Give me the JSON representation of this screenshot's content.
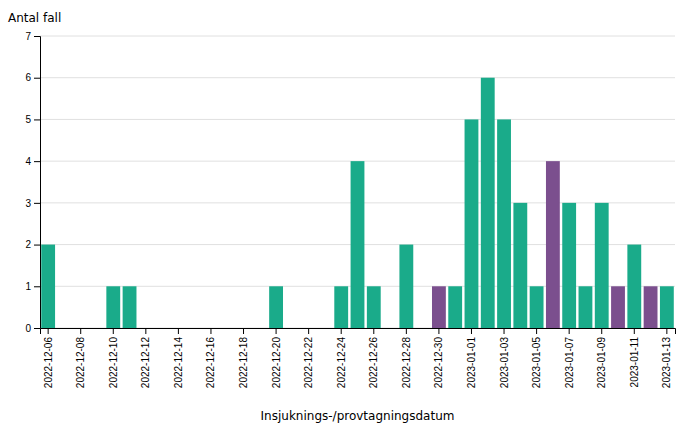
{
  "chart_data": {
    "type": "bar",
    "ylabel": "Antal fall",
    "xlabel": "Insjuknings-/provtagningsdatum",
    "categories": [
      "2022-12-06",
      null,
      "2022-12-08",
      null,
      "2022-12-10",
      null,
      "2022-12-12",
      null,
      "2022-12-14",
      null,
      "2022-12-16",
      null,
      "2022-12-18",
      null,
      "2022-12-20",
      null,
      "2022-12-22",
      null,
      "2022-12-24",
      null,
      "2022-12-26",
      null,
      "2022-12-28",
      null,
      "2022-12-30",
      null,
      "2023-01-01",
      null,
      "2023-01-03",
      null,
      "2023-01-05",
      null,
      "2023-01-07",
      null,
      "2023-01-09",
      null,
      "2023-01-11",
      null,
      "2023-01-13"
    ],
    "values": [
      2,
      0,
      0,
      0,
      1,
      1,
      0,
      0,
      0,
      0,
      0,
      0,
      0,
      0,
      1,
      0,
      0,
      0,
      1,
      4,
      1,
      0,
      2,
      0,
      1,
      1,
      5,
      6,
      5,
      3,
      1,
      4,
      3,
      1,
      3,
      1,
      2,
      1,
      1
    ],
    "colors": [
      "#1aab8a",
      "#1aab8a",
      "#1aab8a",
      "#1aab8a",
      "#1aab8a",
      "#1aab8a",
      "#1aab8a",
      "#1aab8a",
      "#1aab8a",
      "#1aab8a",
      "#1aab8a",
      "#1aab8a",
      "#1aab8a",
      "#1aab8a",
      "#1aab8a",
      "#1aab8a",
      "#1aab8a",
      "#1aab8a",
      "#1aab8a",
      "#1aab8a",
      "#1aab8a",
      "#1aab8a",
      "#1aab8a",
      "#1aab8a",
      "#7b4f8e",
      "#1aab8a",
      "#1aab8a",
      "#1aab8a",
      "#1aab8a",
      "#1aab8a",
      "#1aab8a",
      "#7b4f8e",
      "#1aab8a",
      "#1aab8a",
      "#1aab8a",
      "#7b4f8e",
      "#1aab8a",
      "#7b4f8e",
      "#1aab8a"
    ],
    "ylim": [
      0,
      7
    ],
    "yticks": [
      0,
      1,
      2,
      3,
      4,
      5,
      6,
      7
    ],
    "grid": true
  }
}
